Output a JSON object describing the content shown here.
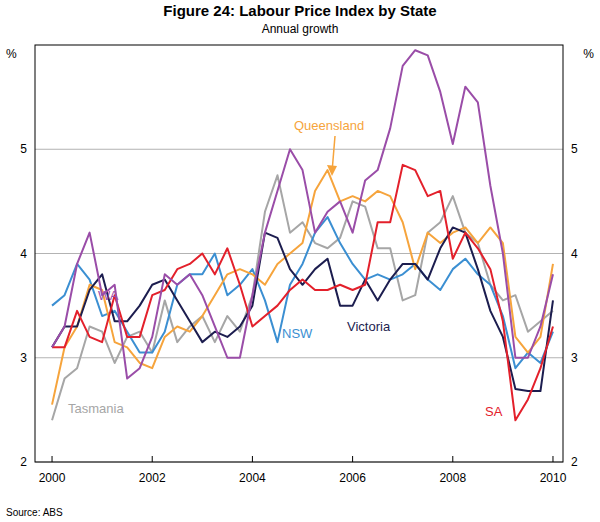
{
  "chart_data": {
    "type": "line",
    "title": "Figure 24: Labour Price Index by State",
    "subtitle": "Annual growth",
    "y_label": "%",
    "source": "Source: ABS",
    "x": [
      2000,
      2000.25,
      2000.5,
      2000.75,
      2001,
      2001.25,
      2001.5,
      2001.75,
      2002,
      2002.25,
      2002.5,
      2002.75,
      2003,
      2003.25,
      2003.5,
      2003.75,
      2004,
      2004.25,
      2004.5,
      2004.75,
      2005,
      2005.25,
      2005.5,
      2005.75,
      2006,
      2006.25,
      2006.5,
      2006.75,
      2007,
      2007.25,
      2007.5,
      2007.75,
      2008,
      2008.25,
      2008.5,
      2008.75,
      2009,
      2009.25,
      2009.5,
      2009.75,
      2010
    ],
    "xlim": [
      1999.66,
      2010.2
    ],
    "xticks": [
      2000,
      2002,
      2004,
      2006,
      2008,
      2010
    ],
    "ylim": [
      2,
      6
    ],
    "yticks": [
      2,
      3,
      4,
      5
    ],
    "grid": true,
    "series": [
      {
        "name": "Tasmania",
        "color": "#a6a6a6",
        "values": [
          2.4,
          2.8,
          2.9,
          3.3,
          3.25,
          2.95,
          3.2,
          3.25,
          3.05,
          3.55,
          3.15,
          3.3,
          3.4,
          3.15,
          3.4,
          3.25,
          3.6,
          4.4,
          4.75,
          4.2,
          4.3,
          4.1,
          4.05,
          4.15,
          4.5,
          4.45,
          4.05,
          4.05,
          3.55,
          3.6,
          4.2,
          4.3,
          4.55,
          4.2,
          4.1,
          3.7,
          3.55,
          3.6,
          3.25,
          3.35,
          3.45
        ]
      },
      {
        "name": "NSW",
        "color": "#3b8fd2",
        "values": [
          3.5,
          3.6,
          3.9,
          3.75,
          3.4,
          3.45,
          3.25,
          3.05,
          3.05,
          3.25,
          3.7,
          3.8,
          3.8,
          4.0,
          3.6,
          3.7,
          3.85,
          3.55,
          3.15,
          3.7,
          3.9,
          4.2,
          4.35,
          4.1,
          3.9,
          3.75,
          3.8,
          3.75,
          3.8,
          3.9,
          3.75,
          3.65,
          3.85,
          3.95,
          3.8,
          3.7,
          3.4,
          2.9,
          3.05,
          2.95,
          3.25
        ]
      },
      {
        "name": "Queensland",
        "color": "#f6a43c",
        "values": [
          2.55,
          3.1,
          3.3,
          3.7,
          3.65,
          3.15,
          3.1,
          2.95,
          2.9,
          3.2,
          3.3,
          3.25,
          3.4,
          3.6,
          3.8,
          3.85,
          3.8,
          3.7,
          3.9,
          4.0,
          4.1,
          4.6,
          4.8,
          4.5,
          4.55,
          4.5,
          4.6,
          4.55,
          4.3,
          3.85,
          4.2,
          4.1,
          4.2,
          4.25,
          4.1,
          4.25,
          4.1,
          3.2,
          3.05,
          3.2,
          3.9
        ]
      },
      {
        "name": "Victoria",
        "color": "#1c1d4f",
        "values": [
          3.1,
          3.3,
          3.3,
          3.65,
          3.8,
          3.35,
          3.35,
          3.5,
          3.7,
          3.75,
          3.55,
          3.35,
          3.15,
          3.25,
          3.2,
          3.3,
          3.5,
          4.2,
          4.15,
          3.85,
          3.7,
          3.85,
          3.95,
          3.5,
          3.5,
          3.75,
          3.55,
          3.75,
          3.9,
          3.9,
          3.75,
          4.05,
          4.25,
          4.2,
          3.85,
          3.45,
          3.2,
          2.7,
          2.68,
          2.68,
          3.55
        ]
      },
      {
        "name": "SA",
        "color": "#e3202b",
        "values": [
          3.1,
          3.1,
          3.45,
          3.2,
          3.15,
          3.6,
          3.2,
          3.2,
          3.6,
          3.65,
          3.85,
          3.9,
          4.0,
          3.8,
          4.05,
          3.7,
          3.3,
          3.4,
          3.5,
          3.65,
          3.75,
          3.65,
          3.65,
          3.7,
          3.65,
          3.7,
          4.3,
          4.3,
          4.85,
          4.8,
          4.55,
          4.6,
          3.95,
          4.2,
          4.05,
          3.85,
          3.35,
          2.4,
          2.6,
          2.9,
          3.3
        ]
      },
      {
        "name": "WA",
        "color": "#9a4da8",
        "values": [
          3.1,
          3.3,
          3.9,
          4.2,
          3.6,
          3.7,
          2.8,
          2.9,
          3.2,
          3.8,
          3.7,
          3.8,
          3.6,
          3.3,
          3.0,
          3.0,
          3.6,
          4.2,
          4.6,
          5.0,
          4.8,
          4.2,
          4.4,
          4.5,
          4.2,
          4.7,
          4.8,
          5.2,
          5.8,
          5.95,
          5.9,
          5.55,
          5.05,
          5.6,
          5.45,
          4.65,
          4.0,
          3.0,
          3.0,
          3.3,
          3.8
        ]
      }
    ]
  }
}
